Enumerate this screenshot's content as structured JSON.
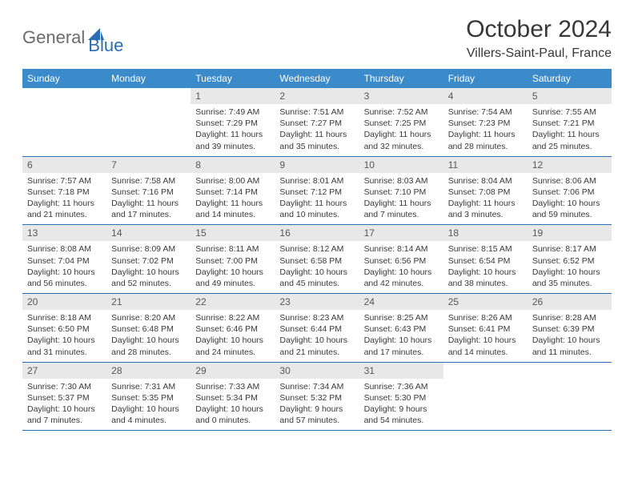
{
  "brand": {
    "part1": "General",
    "part2": "Blue",
    "color1": "#6b6b6b",
    "color2": "#2a6db3",
    "icon_color": "#2a6db3"
  },
  "title": "October 2024",
  "location": "Villers-Saint-Paul, France",
  "header_bg": "#3b8bca",
  "header_text_color": "#ffffff",
  "daynum_bg": "#e8e8e8",
  "daynum_color": "#585858",
  "border_color": "#2a6db3",
  "body_text_color": "#383838",
  "font_family": "Arial, Helvetica, sans-serif",
  "day_headers": [
    "Sunday",
    "Monday",
    "Tuesday",
    "Wednesday",
    "Thursday",
    "Friday",
    "Saturday"
  ],
  "weeks": [
    [
      null,
      null,
      {
        "n": "1",
        "sunrise": "7:49 AM",
        "sunset": "7:29 PM",
        "dh": "11",
        "dm": "39"
      },
      {
        "n": "2",
        "sunrise": "7:51 AM",
        "sunset": "7:27 PM",
        "dh": "11",
        "dm": "35"
      },
      {
        "n": "3",
        "sunrise": "7:52 AM",
        "sunset": "7:25 PM",
        "dh": "11",
        "dm": "32"
      },
      {
        "n": "4",
        "sunrise": "7:54 AM",
        "sunset": "7:23 PM",
        "dh": "11",
        "dm": "28"
      },
      {
        "n": "5",
        "sunrise": "7:55 AM",
        "sunset": "7:21 PM",
        "dh": "11",
        "dm": "25"
      }
    ],
    [
      {
        "n": "6",
        "sunrise": "7:57 AM",
        "sunset": "7:18 PM",
        "dh": "11",
        "dm": "21"
      },
      {
        "n": "7",
        "sunrise": "7:58 AM",
        "sunset": "7:16 PM",
        "dh": "11",
        "dm": "17"
      },
      {
        "n": "8",
        "sunrise": "8:00 AM",
        "sunset": "7:14 PM",
        "dh": "11",
        "dm": "14"
      },
      {
        "n": "9",
        "sunrise": "8:01 AM",
        "sunset": "7:12 PM",
        "dh": "11",
        "dm": "10"
      },
      {
        "n": "10",
        "sunrise": "8:03 AM",
        "sunset": "7:10 PM",
        "dh": "11",
        "dm": "7"
      },
      {
        "n": "11",
        "sunrise": "8:04 AM",
        "sunset": "7:08 PM",
        "dh": "11",
        "dm": "3"
      },
      {
        "n": "12",
        "sunrise": "8:06 AM",
        "sunset": "7:06 PM",
        "dh": "10",
        "dm": "59"
      }
    ],
    [
      {
        "n": "13",
        "sunrise": "8:08 AM",
        "sunset": "7:04 PM",
        "dh": "10",
        "dm": "56"
      },
      {
        "n": "14",
        "sunrise": "8:09 AM",
        "sunset": "7:02 PM",
        "dh": "10",
        "dm": "52"
      },
      {
        "n": "15",
        "sunrise": "8:11 AM",
        "sunset": "7:00 PM",
        "dh": "10",
        "dm": "49"
      },
      {
        "n": "16",
        "sunrise": "8:12 AM",
        "sunset": "6:58 PM",
        "dh": "10",
        "dm": "45"
      },
      {
        "n": "17",
        "sunrise": "8:14 AM",
        "sunset": "6:56 PM",
        "dh": "10",
        "dm": "42"
      },
      {
        "n": "18",
        "sunrise": "8:15 AM",
        "sunset": "6:54 PM",
        "dh": "10",
        "dm": "38"
      },
      {
        "n": "19",
        "sunrise": "8:17 AM",
        "sunset": "6:52 PM",
        "dh": "10",
        "dm": "35"
      }
    ],
    [
      {
        "n": "20",
        "sunrise": "8:18 AM",
        "sunset": "6:50 PM",
        "dh": "10",
        "dm": "31"
      },
      {
        "n": "21",
        "sunrise": "8:20 AM",
        "sunset": "6:48 PM",
        "dh": "10",
        "dm": "28"
      },
      {
        "n": "22",
        "sunrise": "8:22 AM",
        "sunset": "6:46 PM",
        "dh": "10",
        "dm": "24"
      },
      {
        "n": "23",
        "sunrise": "8:23 AM",
        "sunset": "6:44 PM",
        "dh": "10",
        "dm": "21"
      },
      {
        "n": "24",
        "sunrise": "8:25 AM",
        "sunset": "6:43 PM",
        "dh": "10",
        "dm": "17"
      },
      {
        "n": "25",
        "sunrise": "8:26 AM",
        "sunset": "6:41 PM",
        "dh": "10",
        "dm": "14"
      },
      {
        "n": "26",
        "sunrise": "8:28 AM",
        "sunset": "6:39 PM",
        "dh": "10",
        "dm": "11"
      }
    ],
    [
      {
        "n": "27",
        "sunrise": "7:30 AM",
        "sunset": "5:37 PM",
        "dh": "10",
        "dm": "7"
      },
      {
        "n": "28",
        "sunrise": "7:31 AM",
        "sunset": "5:35 PM",
        "dh": "10",
        "dm": "4"
      },
      {
        "n": "29",
        "sunrise": "7:33 AM",
        "sunset": "5:34 PM",
        "dh": "10",
        "dm": "0"
      },
      {
        "n": "30",
        "sunrise": "7:34 AM",
        "sunset": "5:32 PM",
        "dh": "9",
        "dm": "57"
      },
      {
        "n": "31",
        "sunrise": "7:36 AM",
        "sunset": "5:30 PM",
        "dh": "9",
        "dm": "54"
      },
      null,
      null
    ]
  ],
  "labels": {
    "sunrise": "Sunrise:",
    "sunset": "Sunset:",
    "daylight": "Daylight:",
    "hours": "hours",
    "and": "and",
    "minutes": "minutes."
  }
}
